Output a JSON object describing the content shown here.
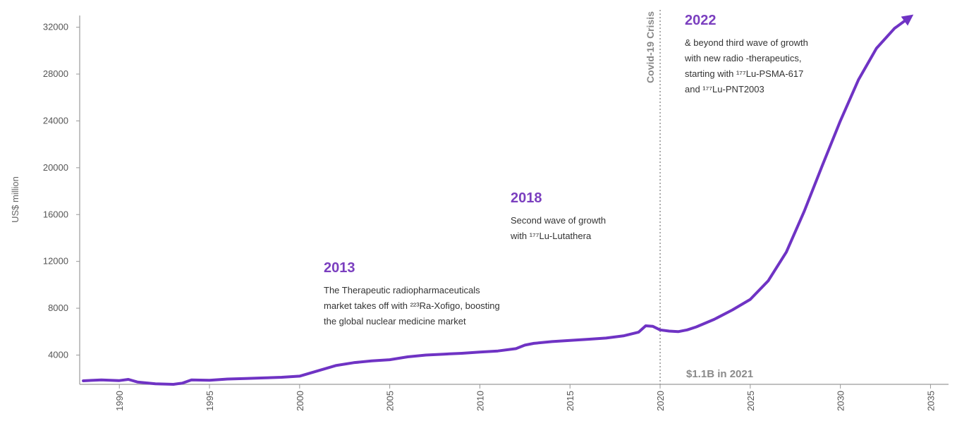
{
  "chart_data": {
    "type": "line",
    "title": "",
    "xlabel": "",
    "ylabel": "US$ million",
    "xlim": [
      1987.8,
      2036
    ],
    "ylim": [
      1500,
      33000
    ],
    "x_ticks": [
      "1990",
      "1995",
      "2000",
      "2005",
      "2010",
      "2015",
      "2020",
      "2025",
      "2030",
      "2035"
    ],
    "y_ticks": [
      "4000",
      "8000",
      "12000",
      "16000",
      "20000",
      "24000",
      "28000",
      "32000"
    ],
    "series": [
      {
        "color": "#6f33c4",
        "x": [
          1988,
          1989,
          1990,
          1990.5,
          1991,
          1992,
          1993,
          1993.5,
          1994,
          1995,
          1996,
          1997,
          1998,
          1999,
          2000,
          2001,
          2002,
          2003,
          2004,
          2005,
          2006,
          2007,
          2008,
          2009,
          2010,
          2011,
          2012,
          2012.5,
          2013,
          2014,
          2015,
          2016,
          2017,
          2018,
          2018.8,
          2019.2,
          2019.6,
          2020,
          2020.5,
          2021,
          2021.5,
          2022,
          2023,
          2024,
          2025,
          2026,
          2027,
          2028,
          2029,
          2030,
          2031,
          2032,
          2033,
          2033.8
        ],
        "values": [
          1800,
          1880,
          1820,
          1920,
          1700,
          1550,
          1500,
          1600,
          1880,
          1850,
          1950,
          2000,
          2050,
          2100,
          2200,
          2650,
          3100,
          3350,
          3500,
          3600,
          3850,
          4000,
          4080,
          4150,
          4250,
          4350,
          4550,
          4850,
          5000,
          5150,
          5250,
          5350,
          5450,
          5650,
          5950,
          6500,
          6450,
          6150,
          6050,
          6000,
          6150,
          6400,
          7050,
          7850,
          8750,
          10350,
          12800,
          16300,
          20200,
          24000,
          27500,
          30200,
          31900,
          32800
        ]
      }
    ],
    "vertical_line": {
      "x": 2020,
      "label": "Covid-19 Crisis",
      "style": "dotted"
    },
    "note": "$1.1B in 2021",
    "annotations": [
      {
        "title": "2013",
        "lines": [
          "The Therapeutic radiopharmaceuticals",
          "market takes off with ²²³Ra-Xofigo, boosting",
          "the global nuclear medicine market"
        ]
      },
      {
        "title": "2018",
        "lines": [
          "Second wave of growth",
          "with ¹⁷⁷Lu-Lutathera"
        ]
      },
      {
        "title": "2022",
        "lines": [
          "& beyond third wave of growth",
          "with new radio -therapeutics,",
          "starting with ¹⁷⁷Lu-PSMA-617",
          "and ¹⁷⁷Lu-PNT2003"
        ]
      }
    ],
    "grid": false,
    "legend": "none"
  }
}
